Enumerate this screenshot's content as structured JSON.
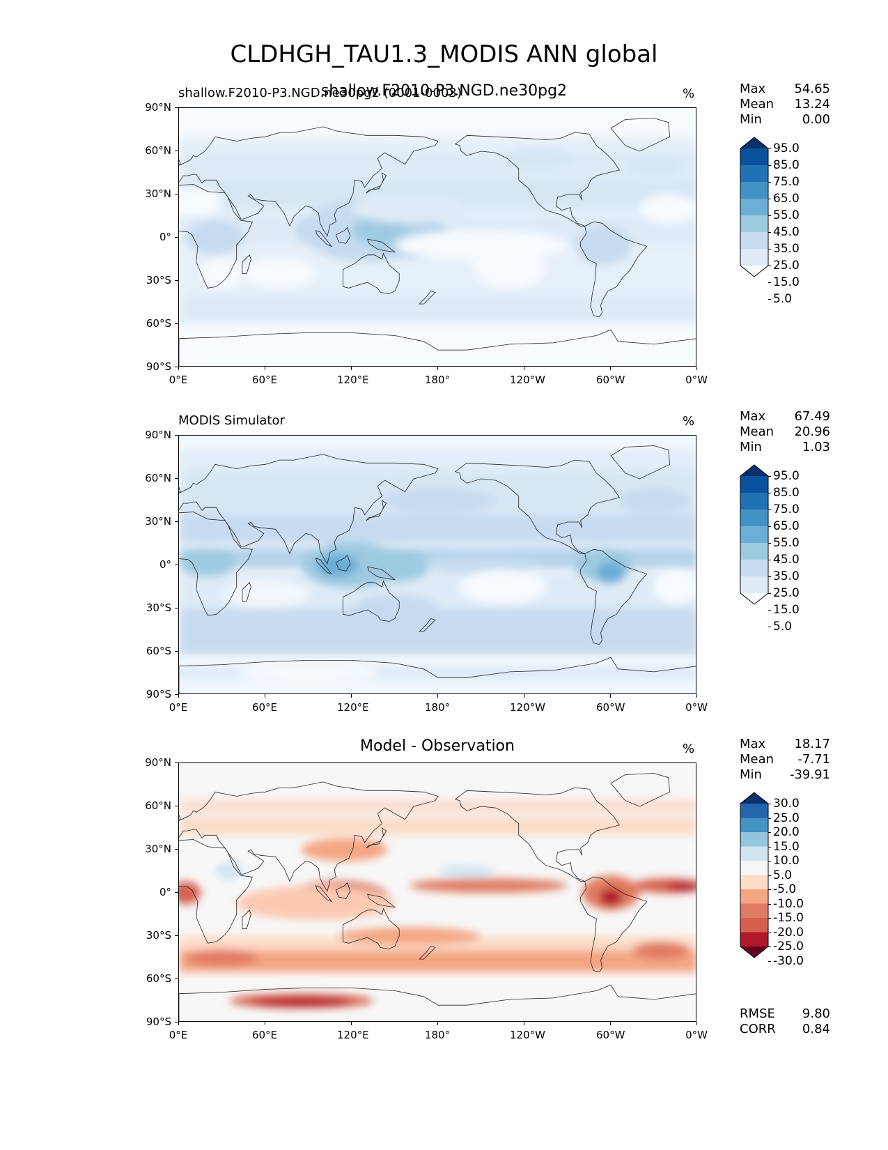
{
  "figure": {
    "title": "CLDHGH_TAU1.3_MODIS ANN global"
  },
  "chart_data": [
    {
      "type": "heatmap",
      "subtitle_left": "shallow.F2010-P3.NGD.ne30pg2 (0001-0003)",
      "subtitle_center": "shallow.F2010-P3.NGD.ne30pg2",
      "units": "%",
      "x_ticks": [
        "0°E",
        "60°E",
        "120°E",
        "180°",
        "120°W",
        "60°W",
        "0°W"
      ],
      "y_ticks": [
        "90°N",
        "60°N",
        "30°N",
        "0°",
        "30°S",
        "60°S",
        "90°S"
      ],
      "stats": {
        "max": "54.65",
        "mean": "13.24",
        "min": "0.00"
      },
      "colorbar": {
        "labels": [
          "95.0",
          "85.0",
          "75.0",
          "65.0",
          "55.0",
          "45.0",
          "35.0",
          "25.0",
          "15.0",
          "5.0"
        ],
        "colors": [
          "#08306b",
          "#08519c",
          "#2171b5",
          "#4292c6",
          "#6baed6",
          "#9ecae1",
          "#c6dbef",
          "#deebf7",
          "#f7fbff"
        ]
      }
    },
    {
      "type": "heatmap",
      "subtitle_left": "MODIS Simulator",
      "units": "%",
      "x_ticks": [
        "0°E",
        "60°E",
        "120°E",
        "180°",
        "120°W",
        "60°W",
        "0°W"
      ],
      "y_ticks": [
        "90°N",
        "60°N",
        "30°N",
        "0°",
        "30°S",
        "60°S",
        "90°S"
      ],
      "stats": {
        "max": "67.49",
        "mean": "20.96",
        "min": "1.03"
      },
      "colorbar": {
        "labels": [
          "95.0",
          "85.0",
          "75.0",
          "65.0",
          "55.0",
          "45.0",
          "35.0",
          "25.0",
          "15.0",
          "5.0"
        ],
        "colors": [
          "#08306b",
          "#08519c",
          "#2171b5",
          "#4292c6",
          "#6baed6",
          "#9ecae1",
          "#c6dbef",
          "#deebf7",
          "#f7fbff"
        ]
      }
    },
    {
      "type": "heatmap",
      "subtitle_center": "Model - Observation",
      "units": "%",
      "x_ticks": [
        "0°E",
        "60°E",
        "120°E",
        "180°",
        "120°W",
        "60°W",
        "0°W"
      ],
      "y_ticks": [
        "90°N",
        "60°N",
        "30°N",
        "0°",
        "30°S",
        "60°S",
        "90°S"
      ],
      "stats": {
        "max": "18.17",
        "mean": "-7.71",
        "min": "-39.91"
      },
      "colorbar": {
        "labels": [
          "30.0",
          "25.0",
          "20.0",
          "15.0",
          "10.0",
          "5.0",
          "-5.0",
          "-10.0",
          "-15.0",
          "-20.0",
          "-25.0",
          "-30.0"
        ],
        "colors": [
          "#08306b",
          "#2166ac",
          "#4393c3",
          "#92c5de",
          "#d1e5f0",
          "#f7f7f7",
          "#fddbc7",
          "#f4a582",
          "#e07b62",
          "#d6604d",
          "#b2182b",
          "#67001f"
        ]
      },
      "metrics": {
        "rmse": "9.80",
        "corr": "0.84"
      }
    }
  ],
  "labels": {
    "max": "Max",
    "mean": "Mean",
    "min": "Min",
    "rmse": "RMSE",
    "corr": "CORR"
  }
}
